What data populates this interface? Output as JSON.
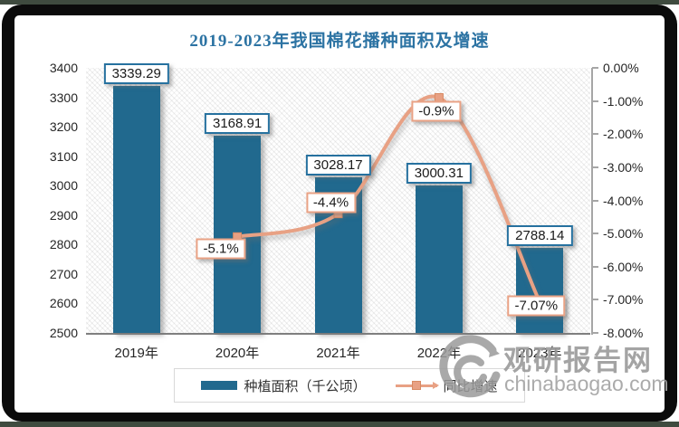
{
  "chart_data": {
    "type": "combo-bar-line",
    "title": "2019-2023年我国棉花播种面积及增速",
    "categories": [
      "2019年",
      "2020年",
      "2021年",
      "2022年",
      "2023年"
    ],
    "series": [
      {
        "name": "种植面积（千公顷）",
        "type": "bar",
        "axis": "left",
        "color": "#21698E",
        "values": [
          3339.29,
          3168.91,
          3028.17,
          3000.31,
          2788.14
        ],
        "data_labels": [
          "3339.29",
          "3168.91",
          "3028.17",
          "3000.31",
          "2788.14"
        ]
      },
      {
        "name": "同比增速",
        "type": "line",
        "axis": "right",
        "color": "#E8A184",
        "values": [
          null,
          -5.1,
          -4.4,
          -0.9,
          -7.07
        ],
        "data_labels": [
          null,
          "-5.1%",
          "-4.4%",
          "-0.9%",
          "-7.07%"
        ]
      }
    ],
    "left_axis": {
      "min": 2500,
      "max": 3400,
      "step": 100,
      "tick_labels": [
        "3400",
        "3300",
        "3200",
        "3100",
        "3000",
        "2900",
        "2800",
        "2700",
        "2600",
        "2500"
      ]
    },
    "right_axis": {
      "min": -8,
      "max": 0,
      "step": 1,
      "tick_labels": [
        "0.00%",
        "-1.00%",
        "-2.00%",
        "-3.00%",
        "-4.00%",
        "-5.00%",
        "-6.00%",
        "-7.00%",
        "-8.00%"
      ]
    },
    "grid": false,
    "legend_position": "bottom",
    "plot_background": "diagonal-hatch",
    "title_color": "#2C73A3"
  },
  "watermark": {
    "name": "观研报告网",
    "domain": "chinabaogao.com",
    "color": "#9B9B9B"
  }
}
